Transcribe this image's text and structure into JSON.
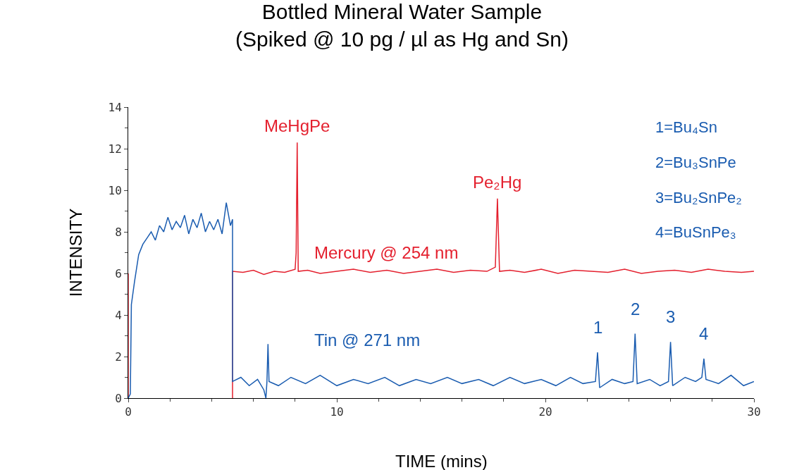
{
  "chart_data": {
    "type": "line",
    "title": "Bottled Mineral Water Sample",
    "subtitle": "(Spiked @ 10 pg / µl as Hg and Sn)",
    "xlabel": "TIME (mins)",
    "ylabel": "INTENSITY",
    "xlim": [
      0,
      30
    ],
    "xticks": [
      0,
      10,
      20,
      30
    ],
    "ylim": [
      0,
      14
    ],
    "yticks": [
      0,
      2,
      4,
      6,
      8,
      10,
      12,
      14
    ],
    "legend": false,
    "series": [
      {
        "name": "Mercury @ 254 nm",
        "color": "#e4202e",
        "x": [
          0,
          0,
          2.5,
          5.0,
          5.0,
          5.5,
          6.0,
          6.5,
          7.0,
          7.5,
          8.0,
          8.05,
          8.1,
          8.15,
          8.6,
          9.2,
          10,
          10.8,
          11.6,
          12.4,
          13.2,
          14,
          14.8,
          15.6,
          16.4,
          17.2,
          17.6,
          17.7,
          17.8,
          18.3,
          19,
          19.8,
          20.6,
          21.4,
          22.2,
          23,
          23.8,
          24.6,
          25.4,
          26.2,
          27,
          27.8,
          28.6,
          29.4,
          30
        ],
        "values": [
          0,
          6.0,
          null,
          0,
          6.1,
          6.05,
          6.15,
          5.95,
          6.1,
          6.05,
          6.2,
          7.0,
          12.3,
          6.1,
          6.15,
          6.0,
          6.1,
          6.2,
          6.05,
          6.15,
          6.0,
          6.1,
          6.2,
          6.05,
          6.15,
          6.1,
          6.3,
          9.6,
          6.1,
          6.15,
          6.05,
          6.2,
          6.0,
          6.15,
          6.1,
          6.05,
          6.2,
          6.0,
          6.1,
          6.15,
          6.05,
          6.2,
          6.1,
          6.05,
          6.1
        ]
      },
      {
        "name": "Tin @ 271 nm",
        "color": "#1a5cb0",
        "x": [
          0,
          0.1,
          0.15,
          0.3,
          0.5,
          0.7,
          0.9,
          1.1,
          1.3,
          1.5,
          1.7,
          1.9,
          2.1,
          2.3,
          2.5,
          2.7,
          2.9,
          3.1,
          3.3,
          3.5,
          3.7,
          3.9,
          4.1,
          4.3,
          4.5,
          4.7,
          4.9,
          5.0,
          5.0,
          5.4,
          5.8,
          6.2,
          6.5,
          6.6,
          6.65,
          6.7,
          6.75,
          7.2,
          7.8,
          8.5,
          9.2,
          10,
          10.8,
          11.5,
          12.3,
          13,
          13.8,
          14.5,
          15.3,
          16,
          16.8,
          17.5,
          18.3,
          19,
          19.8,
          20.5,
          21.2,
          21.8,
          22.4,
          22.5,
          22.6,
          23.2,
          23.8,
          24.2,
          24.3,
          24.4,
          25.0,
          25.5,
          25.9,
          26.0,
          26.1,
          26.7,
          27.2,
          27.5,
          27.6,
          27.7,
          28.3,
          28.9,
          29.5,
          30.0
        ],
        "values": [
          0,
          0.2,
          4.5,
          5.6,
          6.9,
          7.4,
          7.7,
          8.0,
          7.6,
          8.3,
          8.0,
          8.7,
          8.1,
          8.5,
          8.2,
          8.8,
          7.9,
          8.6,
          8.2,
          8.9,
          8.0,
          8.5,
          8.1,
          8.6,
          7.9,
          9.4,
          8.3,
          8.6,
          0.8,
          1.0,
          0.6,
          0.9,
          0.4,
          0.0,
          0.8,
          2.6,
          0.8,
          0.6,
          1.0,
          0.7,
          1.1,
          0.6,
          0.9,
          0.7,
          1.0,
          0.6,
          0.9,
          0.7,
          1.0,
          0.7,
          0.9,
          0.6,
          1.0,
          0.7,
          0.9,
          0.6,
          1.0,
          0.7,
          0.8,
          2.2,
          0.5,
          0.9,
          0.7,
          0.8,
          3.1,
          0.7,
          0.9,
          0.6,
          0.8,
          2.7,
          0.6,
          1.0,
          0.8,
          1.0,
          1.9,
          0.9,
          0.7,
          1.1,
          0.6,
          0.8
        ]
      }
    ],
    "annotations": [
      {
        "text": "MeHgPe",
        "x": 8.1,
        "y": 12.3
      },
      {
        "text": "Pe₂Hg",
        "x": 17.7,
        "y": 9.6
      },
      {
        "text": "1",
        "x": 22.5,
        "y": 2.2
      },
      {
        "text": "2",
        "x": 24.3,
        "y": 3.1
      },
      {
        "text": "3",
        "x": 26.0,
        "y": 2.7
      },
      {
        "text": "4",
        "x": 27.6,
        "y": 1.9
      },
      "1=Bu₄Sn",
      "2=Bu₃SnPe",
      "3=Bu₂SnPe₂",
      "4=BuSnPe₃"
    ]
  }
}
